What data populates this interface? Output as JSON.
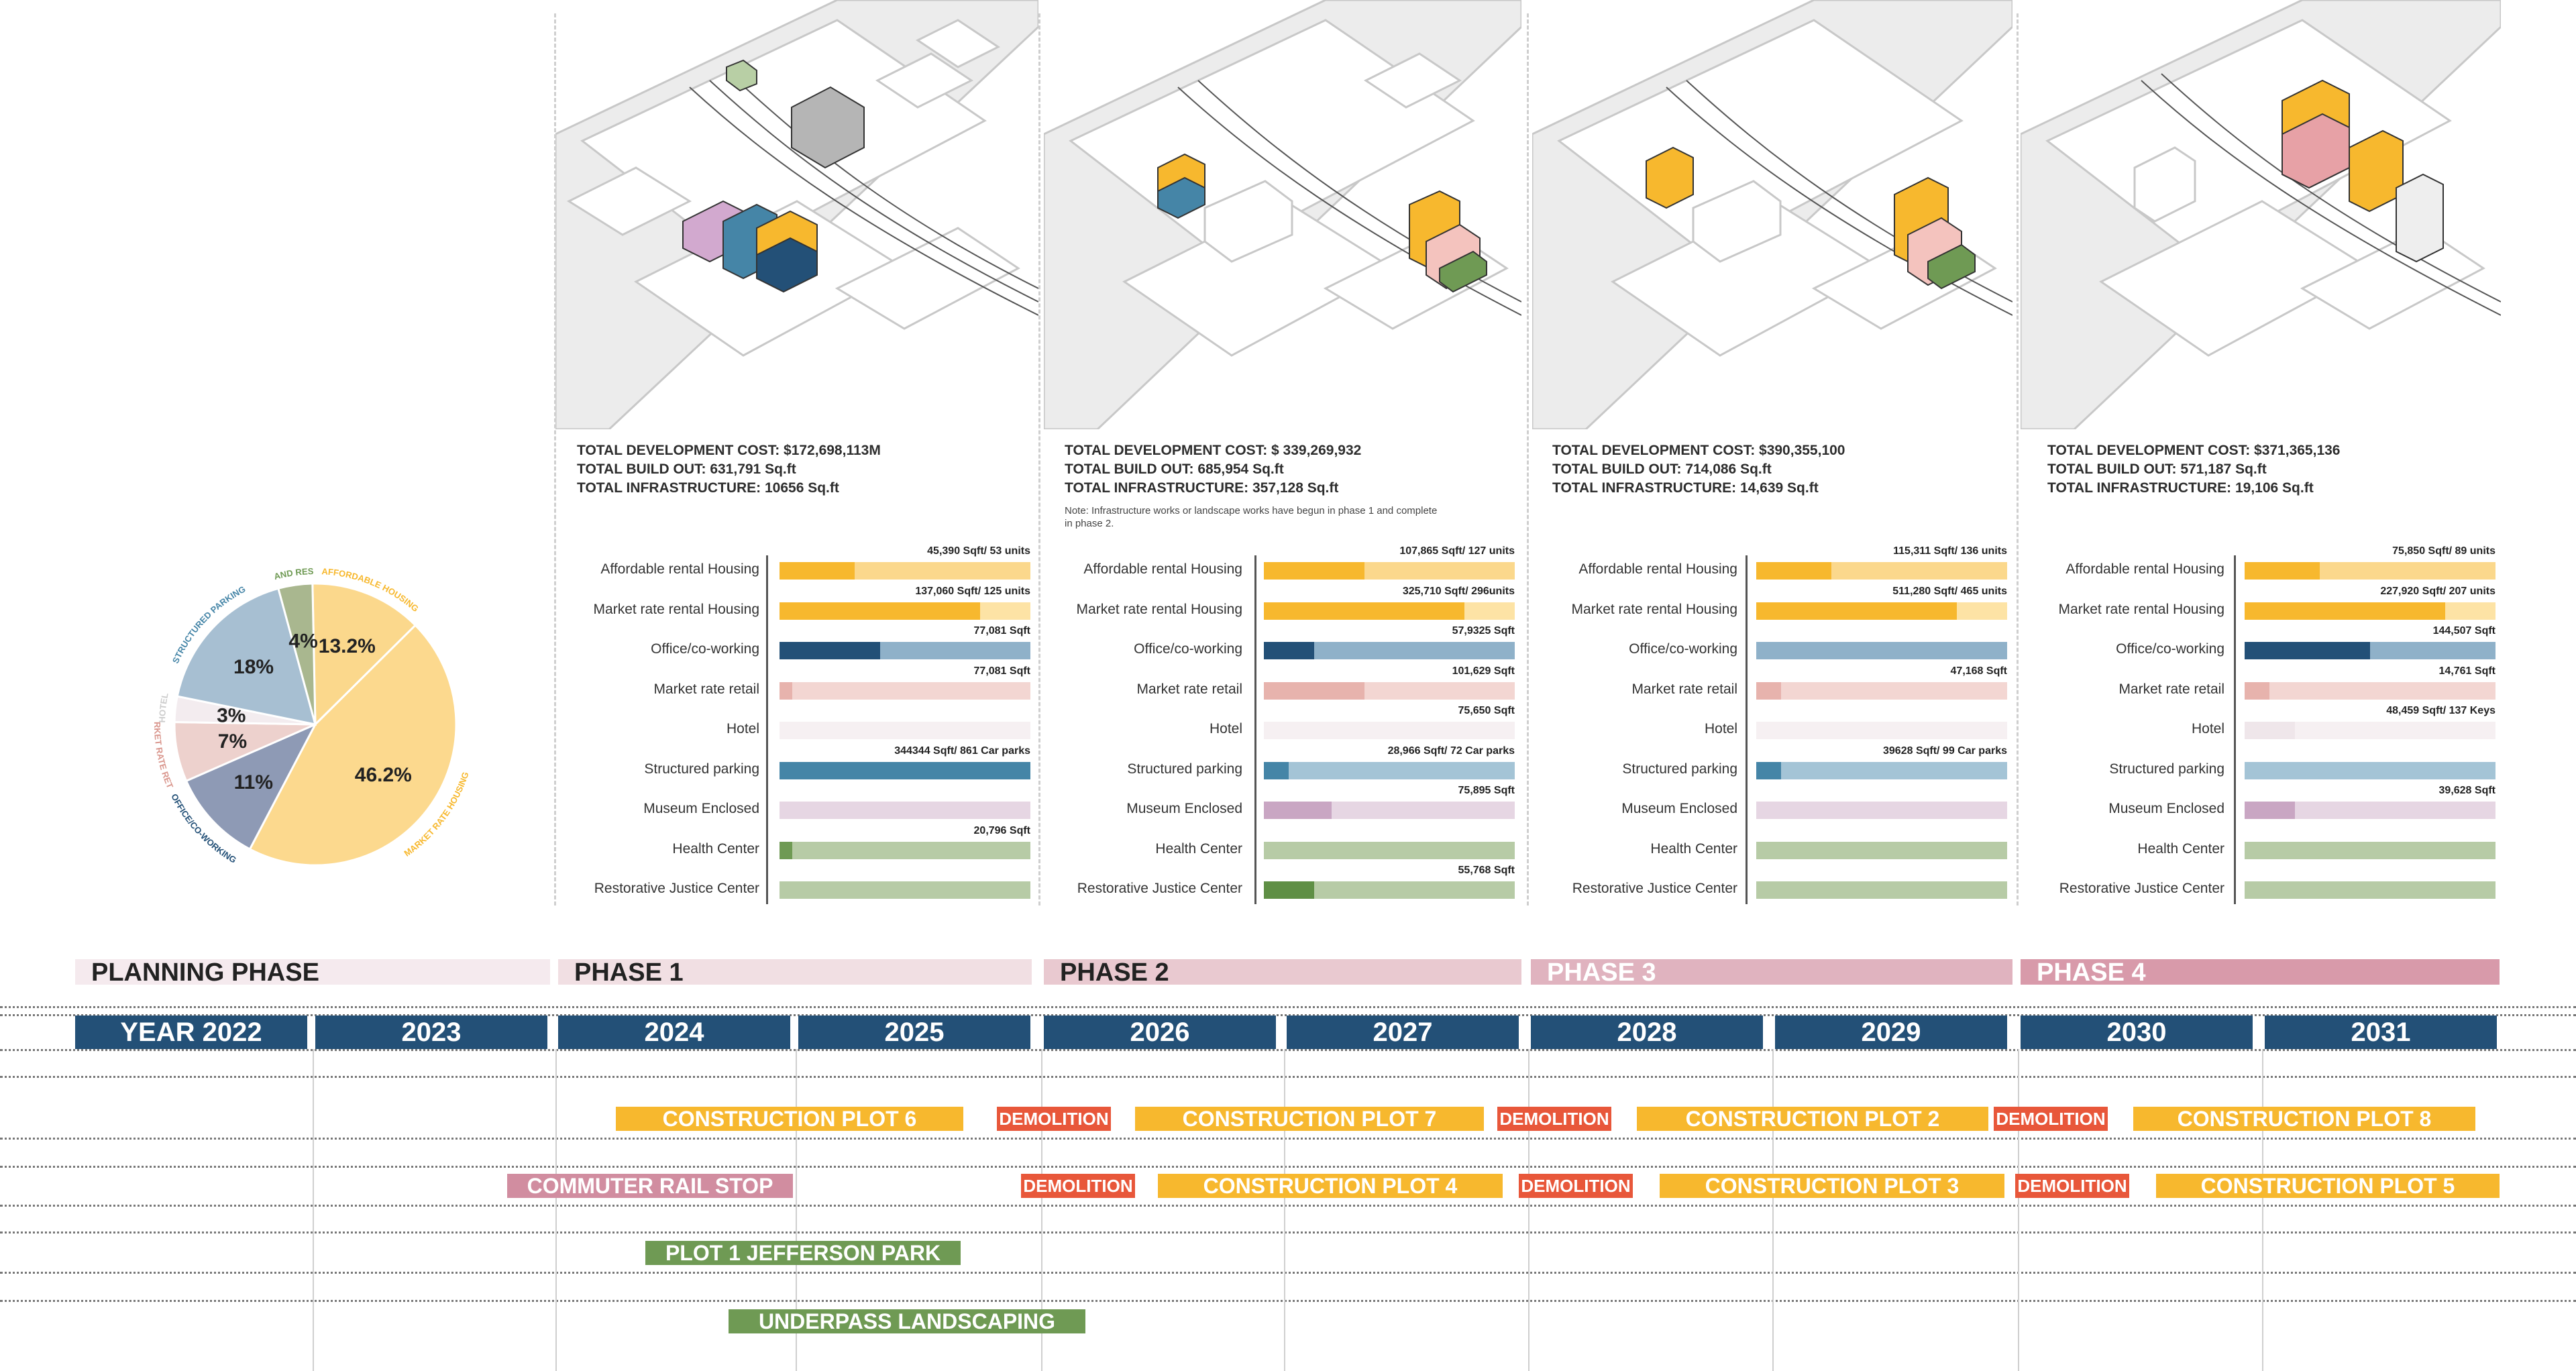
{
  "colors": {
    "affordable": "#f7b82e",
    "affordable_light": "#fbd88c",
    "market": "#f7b82e",
    "market_light": "#fde3a5",
    "office": "#235077",
    "office_light": "#8fb1c9",
    "retail": "#e7b3ad",
    "retail_light": "#f3d6d2",
    "hotel": "#efe6ea",
    "hotel_light": "#f6f0f2",
    "parking": "#4585a7",
    "parking_light": "#a4c4d6",
    "museum": "#c9a6c3",
    "museum_light": "#e6d6e3",
    "health": "#6f9a54",
    "health_light": "#b7cba6",
    "justice": "#5f8f45",
    "justice_light": "#b7cba6",
    "year_bg": "#235077",
    "construction": "#f7b82e",
    "demolition": "#e8573a",
    "rail": "#d18da0",
    "park": "#6f9a54"
  },
  "chart_data": {
    "type": "pie",
    "slices": [
      {
        "label": "AFFORDABLE HOUSING",
        "value": 13.2,
        "display": "13.2%",
        "color": "#fbd88c"
      },
      {
        "label": "MARKET RATE HOUSING",
        "value": 46.2,
        "display": "46.2%",
        "color": "#fcd98e"
      },
      {
        "label": "OFFICE/CO-WORKING",
        "value": 11,
        "display": "11%",
        "color": "#8e9ab5"
      },
      {
        "label": "MARKET RATE RETAIL",
        "value": 7,
        "display": "7%",
        "color": "#edd1cd"
      },
      {
        "label": "HOTEL",
        "value": 3,
        "display": "3%",
        "color": "#f3ecef"
      },
      {
        "label": "STRUCTURED PARKING",
        "value": 18,
        "display": "18%",
        "color": "#a7bfd2"
      },
      {
        "label": "MUSEUM, HEALTH CENTER, AND RESTORATIVE JUSTICE CENTER",
        "value": 4,
        "display": "4%",
        "color": "#a9b78f"
      }
    ],
    "label_colors": [
      "#f7b82e",
      "#f7b82e",
      "#235077",
      "#d9958c",
      "#cccccc",
      "#4585a7",
      "#6f9a54"
    ]
  },
  "row_labels": [
    "Affordable rental Housing",
    "Market rate rental Housing",
    "Office/co-working",
    "Market rate retail",
    "Hotel",
    "Structured parking",
    "Museum Enclosed",
    "Health Center",
    "Restorative Justice Center"
  ],
  "row_keys": [
    "affordable",
    "market",
    "office",
    "retail",
    "hotel",
    "parking",
    "museum",
    "health",
    "justice"
  ],
  "phases_detail": [
    {
      "stats": [
        "TOTAL DEVELOPMENT COST: $172,698,113M",
        "TOTAL BUILD OUT: 631,791 Sq.ft",
        "TOTAL INFRASTRUCTURE: 10656 Sq.ft"
      ],
      "note": "",
      "bars": [
        {
          "fill": 0.3,
          "label": "45,390 Sqft/ 53 units"
        },
        {
          "fill": 0.8,
          "label": "137,060 Sqft/ 125 units"
        },
        {
          "fill": 0.4,
          "label": "77,081 Sqft"
        },
        {
          "fill": 0.05,
          "label": "77,081 Sqft"
        },
        {
          "fill": 0,
          "label": ""
        },
        {
          "fill": 1.0,
          "label": "344344 Sqft/ 861 Car parks"
        },
        {
          "fill": 0,
          "label": ""
        },
        {
          "fill": 0.05,
          "label": "20,796 Sqft"
        },
        {
          "fill": 0,
          "label": ""
        }
      ]
    },
    {
      "stats": [
        "TOTAL DEVELOPMENT COST: $ 339,269,932",
        "TOTAL BUILD OUT: 685,954 Sq.ft",
        "TOTAL INFRASTRUCTURE: 357,128 Sq.ft"
      ],
      "note": "Note: Infrastructure works or landscape works have begun in phase 1 and complete in phase 2.",
      "bars": [
        {
          "fill": 0.4,
          "label": "107,865 Sqft/ 127 units"
        },
        {
          "fill": 0.8,
          "label": "325,710 Sqft/ 296units"
        },
        {
          "fill": 0.2,
          "label": "57,9325 Sqft"
        },
        {
          "fill": 0.4,
          "label": "101,629 Sqft"
        },
        {
          "fill": 0,
          "label": "75,650 Sqft"
        },
        {
          "fill": 0.1,
          "label": "28,966 Sqft/ 72 Car parks"
        },
        {
          "fill": 0.27,
          "label": "75,895 Sqft"
        },
        {
          "fill": 0,
          "label": ""
        },
        {
          "fill": 0.2,
          "label": "55,768 Sqft"
        }
      ]
    },
    {
      "stats": [
        "TOTAL DEVELOPMENT COST: $390,355,100",
        "TOTAL BUILD OUT: 714,086 Sq.ft",
        "TOTAL INFRASTRUCTURE: 14,639 Sq.ft"
      ],
      "note": "",
      "bars": [
        {
          "fill": 0.3,
          "label": "115,311 Sqft/ 136 units"
        },
        {
          "fill": 0.8,
          "label": "511,280 Sqft/ 465 units"
        },
        {
          "fill": 0,
          "label": ""
        },
        {
          "fill": 0.1,
          "label": "47,168 Sqft"
        },
        {
          "fill": 0,
          "label": ""
        },
        {
          "fill": 0.1,
          "label": "39628 Sqft/ 99 Car parks"
        },
        {
          "fill": 0,
          "label": ""
        },
        {
          "fill": 0,
          "label": ""
        },
        {
          "fill": 0,
          "label": ""
        }
      ]
    },
    {
      "stats": [
        "TOTAL DEVELOPMENT COST: $371,365,136",
        "TOTAL BUILD OUT: 571,187 Sq.ft",
        "TOTAL INFRASTRUCTURE: 19,106 Sq.ft"
      ],
      "note": "",
      "bars": [
        {
          "fill": 0.3,
          "label": "75,850 Sqft/ 89 units"
        },
        {
          "fill": 0.8,
          "label": "227,920 Sqft/ 207 units"
        },
        {
          "fill": 0.5,
          "label": "144,507 Sqft"
        },
        {
          "fill": 0.1,
          "label": "14,761 Sqft"
        },
        {
          "fill": 0.2,
          "label": "48,459 Sqft/ 137 Keys"
        },
        {
          "fill": 0,
          "label": ""
        },
        {
          "fill": 0.2,
          "label": "39,628 Sqft"
        },
        {
          "fill": 0,
          "label": ""
        },
        {
          "fill": 0,
          "label": ""
        }
      ]
    }
  ],
  "timeline": {
    "phases": [
      {
        "label": "PLANNING PHASE",
        "bg": "#f5eaee",
        "fg": "#222222"
      },
      {
        "label": "PHASE 1",
        "bg": "#f1dfe3",
        "fg": "#222222"
      },
      {
        "label": "PHASE 2",
        "bg": "#e9c9d0",
        "fg": "#222222"
      },
      {
        "label": "PHASE 3",
        "bg": "#e0b3bf",
        "fg": "#ffffff"
      },
      {
        "label": "PHASE 4",
        "bg": "#d89aaa",
        "fg": "#ffffff"
      }
    ],
    "years": [
      "YEAR 2022",
      "2023",
      "2024",
      "2025",
      "2026",
      "2027",
      "2028",
      "2029",
      "2030",
      "2031"
    ],
    "tasks": [
      {
        "label": "CONSTRUCTION PLOT 6",
        "kind": "construction",
        "lane": 0
      },
      {
        "label": "DEMOLITION",
        "kind": "demolition",
        "lane": 0
      },
      {
        "label": "CONSTRUCTION PLOT 7",
        "kind": "construction",
        "lane": 0
      },
      {
        "label": "DEMOLITION",
        "kind": "demolition",
        "lane": 0
      },
      {
        "label": "CONSTRUCTION PLOT 2",
        "kind": "construction",
        "lane": 0
      },
      {
        "label": "DEMOLITION",
        "kind": "demolition",
        "lane": 0
      },
      {
        "label": "CONSTRUCTION PLOT 8",
        "kind": "construction",
        "lane": 0
      },
      {
        "label": "COMMUTER RAIL STOP",
        "kind": "rail",
        "lane": 1
      },
      {
        "label": "DEMOLITION",
        "kind": "demolition",
        "lane": 1
      },
      {
        "label": "CONSTRUCTION PLOT 4",
        "kind": "construction",
        "lane": 1
      },
      {
        "label": "DEMOLITION",
        "kind": "demolition",
        "lane": 1
      },
      {
        "label": "CONSTRUCTION PLOT 3",
        "kind": "construction",
        "lane": 1
      },
      {
        "label": "DEMOLITION",
        "kind": "demolition",
        "lane": 1
      },
      {
        "label": "CONSTRUCTION PLOT 5",
        "kind": "construction",
        "lane": 1
      },
      {
        "label": "PLOT 1 JEFFERSON PARK",
        "kind": "park",
        "lane": 2
      },
      {
        "label": "UNDERPASS LANDSCAPING",
        "kind": "park",
        "lane": 3
      }
    ]
  }
}
